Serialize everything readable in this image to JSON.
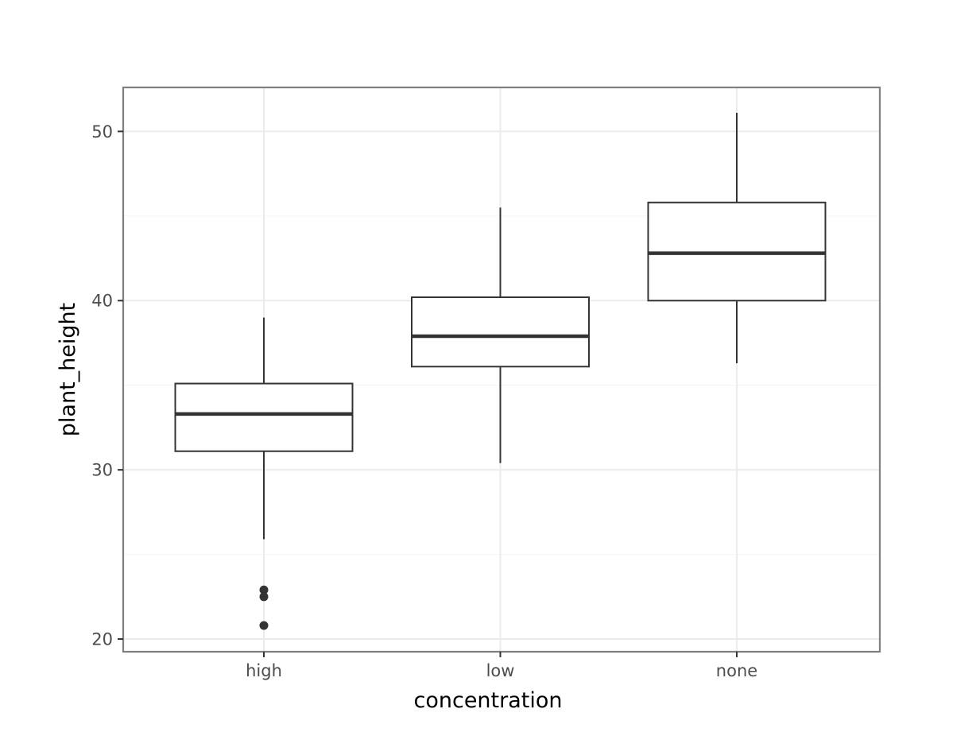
{
  "chart_data": {
    "type": "boxplot",
    "title": "",
    "xlabel": "concentration",
    "ylabel": "plant_height",
    "ylim": [
      19.25,
      52.6
    ],
    "y_major_ticks": [
      20,
      30,
      40,
      50
    ],
    "y_minor_ticks": [
      25,
      35,
      45
    ],
    "grid": true,
    "categories": [
      "high",
      "low",
      "none"
    ],
    "boxes": [
      {
        "category": "high",
        "whisker_low": 25.9,
        "q1": 31.1,
        "median": 33.3,
        "q3": 35.1,
        "whisker_high": 39.0,
        "outliers": [
          22.9,
          22.5,
          20.8
        ]
      },
      {
        "category": "low",
        "whisker_low": 30.4,
        "q1": 36.1,
        "median": 37.9,
        "q3": 40.2,
        "whisker_high": 45.5,
        "outliers": []
      },
      {
        "category": "none",
        "whisker_low": 36.3,
        "q1": 40.0,
        "median": 42.8,
        "q3": 45.8,
        "whisker_high": 51.1,
        "outliers": []
      }
    ],
    "colors": {
      "box_stroke": "#333333",
      "box_fill": "#ffffff",
      "panel_border": "#7f7f7f",
      "grid_major": "#ebebeb",
      "grid_minor": "#f5f5f5",
      "tick_label": "#4d4d4d"
    }
  }
}
